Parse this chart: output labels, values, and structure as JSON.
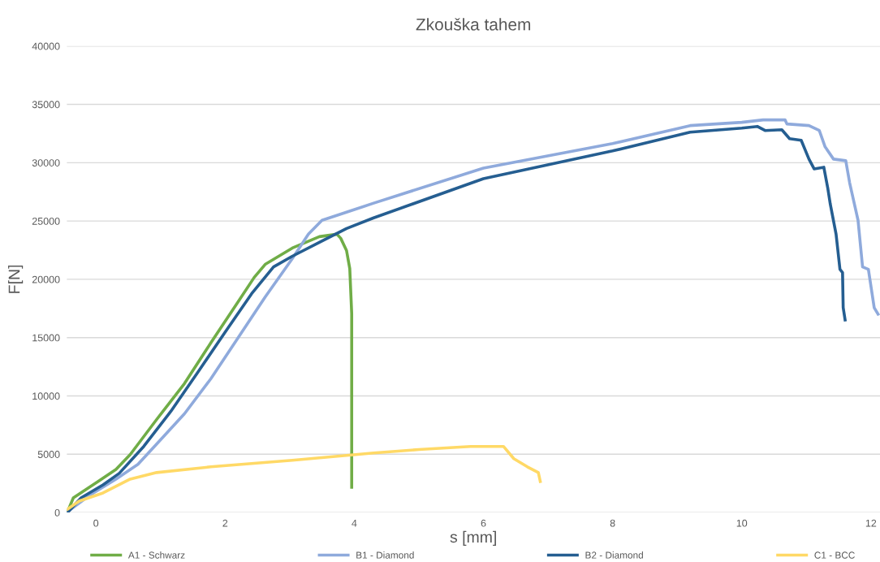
{
  "chart_data": {
    "type": "line",
    "title": "Zkouška tahem",
    "xlabel": "s [mm]",
    "ylabel": "F[N]",
    "xlim": [
      -0.45,
      12.14
    ],
    "xticks": [
      0,
      2,
      4,
      6,
      8,
      10,
      12
    ],
    "ylim": [
      0,
      40000
    ],
    "yticks": [
      0,
      5000,
      10000,
      15000,
      20000,
      25000,
      30000,
      35000,
      40000
    ],
    "grid": "y",
    "legend": "bottom",
    "marker": "none",
    "line_style": "solid",
    "series": [
      {
        "name": "A1 - Schwarz",
        "color": "#70ad47",
        "x": [
          -0.44,
          -0.35,
          0.03,
          0.31,
          0.53,
          0.94,
          1.37,
          1.78,
          2.2,
          2.45,
          2.62,
          3.04,
          3.46,
          3.73,
          3.79,
          3.88,
          3.93,
          3.96,
          3.96
        ],
        "values": [
          70,
          1260,
          2660,
          3700,
          4970,
          7980,
          11060,
          14560,
          18060,
          20160,
          21280,
          22680,
          23660,
          23870,
          23520,
          22470,
          20930,
          17080,
          2170
        ]
      },
      {
        "name": "B1 - Diamond",
        "color": "#8faadc",
        "x": [
          -0.44,
          -0.1,
          0.31,
          0.65,
          0.94,
          1.37,
          1.78,
          2.2,
          2.62,
          3.04,
          3.29,
          3.5,
          3.88,
          4.3,
          6,
          8,
          9.2,
          10,
          10.33,
          10.67,
          10.7,
          11.04,
          11.2,
          11.29,
          11.42,
          11.61,
          11.67,
          11.8,
          11.87,
          11.96,
          12.05,
          12.11
        ],
        "values": [
          70,
          1470,
          2870,
          4130,
          5880,
          8470,
          11480,
          14980,
          18480,
          21770,
          23870,
          25060,
          25760,
          26530,
          29540,
          31640,
          33180,
          33460,
          33670,
          33670,
          33320,
          33180,
          32760,
          31360,
          30310,
          30170,
          28280,
          25060,
          21070,
          20860,
          17570,
          17010
        ]
      },
      {
        "name": "B2 - Diamond",
        "color": "#255e91",
        "x": [
          -0.44,
          -0.23,
          0.11,
          0.36,
          0.74,
          1.16,
          1.57,
          2.0,
          2.41,
          2.75,
          3.04,
          3.46,
          3.88,
          4.3,
          6,
          8,
          9.2,
          10,
          10.24,
          10.36,
          10.62,
          10.74,
          10.92,
          11.04,
          11.12,
          11.27,
          11.33,
          11.37,
          11.46,
          11.52,
          11.56,
          11.57,
          11.6
        ],
        "values": [
          0,
          1260,
          2380,
          3360,
          5670,
          8680,
          11970,
          15470,
          18760,
          21070,
          21980,
          23170,
          24360,
          25270,
          28630,
          31010,
          32620,
          32970,
          33110,
          32760,
          32830,
          32060,
          31920,
          30310,
          29470,
          29610,
          27860,
          26460,
          23870,
          20860,
          20580,
          17570,
          16520
        ]
      },
      {
        "name": "C1 - BCC",
        "color": "#ffd966",
        "x": [
          -0.44,
          -0.26,
          0.11,
          0.53,
          0.94,
          1.78,
          3.04,
          4.3,
          5.0,
          5.8,
          6.31,
          6.47,
          6.68,
          6.85,
          6.88
        ],
        "values": [
          280,
          980,
          1680,
          2870,
          3430,
          3920,
          4480,
          5110,
          5400,
          5670,
          5670,
          4620,
          3920,
          3430,
          2660
        ]
      }
    ]
  }
}
